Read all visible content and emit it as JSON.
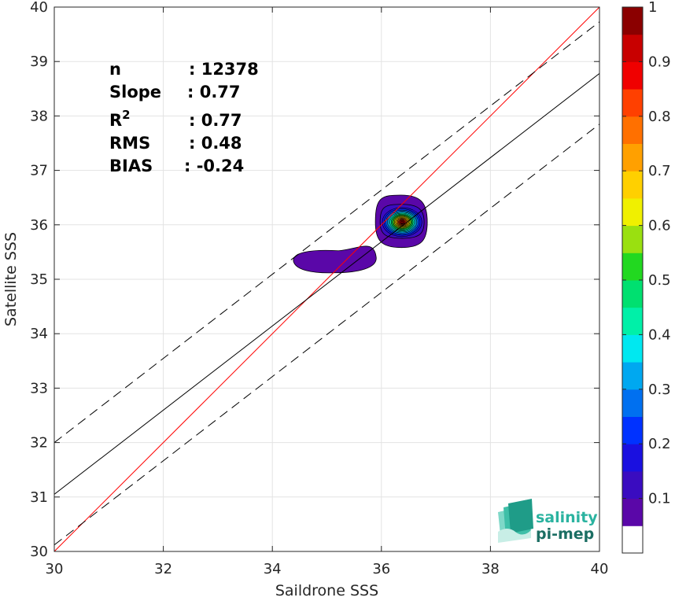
{
  "chart_data": {
    "type": "heatmap",
    "title": "",
    "xlabel": "Saildrone SSS",
    "ylabel": "Satellite SSS",
    "xlim": [
      30,
      40
    ],
    "ylim": [
      30,
      40
    ],
    "x_ticks": [
      30,
      32,
      34,
      36,
      38,
      40
    ],
    "y_ticks": [
      30,
      31,
      32,
      33,
      34,
      35,
      36,
      37,
      38,
      39,
      40
    ],
    "grid": true,
    "stats": [
      {
        "label": "n",
        "value": ": 12378"
      },
      {
        "label": "Slope",
        "value": ": 0.77"
      },
      {
        "label": "R",
        "sup": "2",
        "value": ": 0.77"
      },
      {
        "label": "RMS",
        "value": ": 0.48"
      },
      {
        "label": "BIAS",
        "value": ": -0.24"
      }
    ],
    "lines": [
      {
        "name": "one-to-one",
        "color": "#ff0000",
        "points": [
          [
            30,
            30
          ],
          [
            40,
            40
          ]
        ]
      },
      {
        "name": "regression",
        "color": "#000000",
        "points": [
          [
            30,
            31.05
          ],
          [
            40,
            38.78
          ]
        ]
      },
      {
        "name": "upper-bound",
        "color": "#000000",
        "dashed": true,
        "points": [
          [
            30,
            32.0
          ],
          [
            40,
            39.73
          ]
        ]
      },
      {
        "name": "lower-bound",
        "color": "#000000",
        "dashed": true,
        "points": [
          [
            30,
            30.12
          ],
          [
            40,
            37.85
          ]
        ]
      }
    ],
    "density_peaks": [
      {
        "x": 36.38,
        "y": 36.05,
        "peak": 1.0
      },
      {
        "x": 35.5,
        "y": 35.35,
        "peak": 0.1
      }
    ],
    "colorbar": {
      "range": [
        0,
        1
      ],
      "ticks": [
        "0.1",
        "0.2",
        "0.3",
        "0.4",
        "0.5",
        "0.6",
        "0.7",
        "0.8",
        "0.9",
        "1"
      ],
      "colors": [
        "#ffffff",
        "#5a07a8",
        "#3a0cc0",
        "#1a10e0",
        "#0032ff",
        "#0070f0",
        "#00a8f0",
        "#00e8f0",
        "#00f0a8",
        "#00e070",
        "#22d820",
        "#9ae010",
        "#f0f000",
        "#ffd000",
        "#ffa000",
        "#ff7000",
        "#ff4000",
        "#f00000",
        "#c80000",
        "#8b0000"
      ]
    }
  },
  "logo": {
    "line1": "salinity",
    "line2": "pi-mep"
  }
}
